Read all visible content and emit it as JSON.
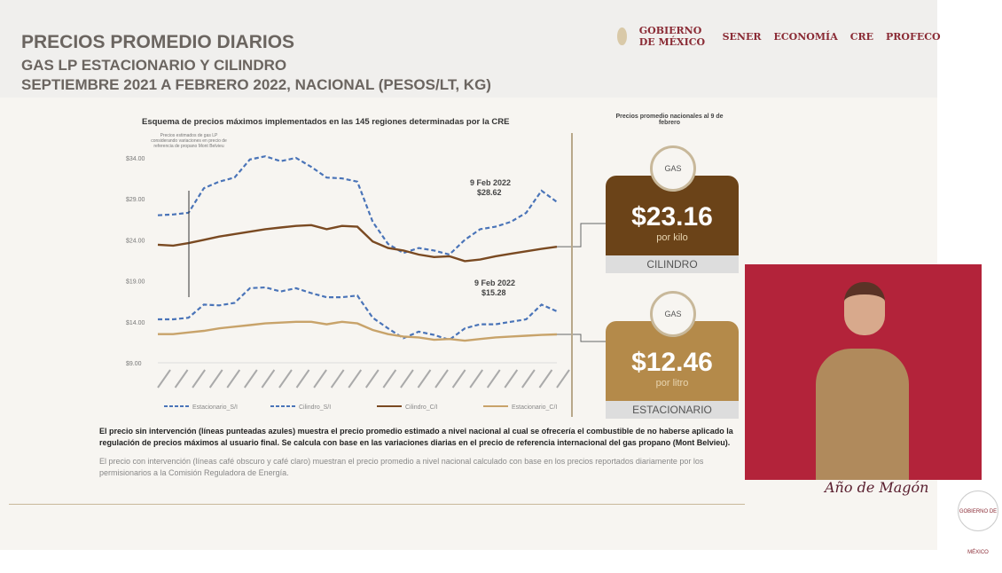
{
  "header": {
    "title": "PRECIOS PROMEDIO DIARIOS",
    "subtitle": "GAS LP ESTACIONARIO Y CILINDRO",
    "period": "SEPTIEMBRE 2021 A FEBRERO 2022, NACIONAL (PESOS/LT, KG)"
  },
  "logos": [
    "GOBIERNO DE MÉXICO",
    "SENER",
    "ECONOMÍA",
    "CRE",
    "PROFECO"
  ],
  "chart_data": {
    "type": "line",
    "title": "Esquema de precios máximos implementados en las 145 regiones determinadas por la CRE",
    "ylim": [
      9,
      34
    ],
    "yticks": [
      "$9.00",
      "$14.00",
      "$19.00",
      "$24.00",
      "$29.00",
      "$34.00"
    ],
    "grid": false,
    "legend": "bottom",
    "annotations": [
      {
        "text": "Precios estimados de gas LP considerando variaciones en precio de referencia de propano Mont Belvieu"
      },
      {
        "text": "9 Feb 2022",
        "value": "$28.62"
      },
      {
        "text": "9 Feb 2022",
        "value": "$15.28"
      }
    ],
    "series": [
      {
        "name": "Estacionario_S/I",
        "color": "#4a74b8",
        "dashed": true,
        "values": [
          14.3,
          14.3,
          14.5,
          16.1,
          16.0,
          16.3,
          18.1,
          18.2,
          17.7,
          18.1,
          17.5,
          17.0,
          17.0,
          17.2,
          14.5,
          13.2,
          12.0,
          12.8,
          12.4,
          11.8,
          13.2,
          13.7,
          13.7,
          14.0,
          14.3,
          16.1,
          15.28
        ]
      },
      {
        "name": "Cilindro_S/I",
        "color": "#4a74b8",
        "dashed": true,
        "values": [
          27.0,
          27.1,
          27.3,
          30.3,
          31.1,
          31.6,
          33.8,
          34.2,
          33.6,
          34.0,
          32.9,
          31.6,
          31.5,
          31.1,
          26.2,
          23.5,
          22.4,
          23.0,
          22.7,
          22.2,
          24.0,
          25.3,
          25.6,
          26.2,
          27.3,
          30.0,
          28.62
        ]
      },
      {
        "name": "Cilindro_C/I",
        "color": "#7a4a22",
        "dashed": false,
        "values": [
          23.4,
          23.3,
          23.6,
          24.0,
          24.4,
          24.7,
          25.0,
          25.3,
          25.5,
          25.7,
          25.8,
          25.3,
          25.7,
          25.6,
          23.8,
          23.0,
          22.7,
          22.2,
          21.9,
          22.0,
          21.4,
          21.6,
          22.0,
          22.3,
          22.6,
          22.9,
          23.16
        ]
      },
      {
        "name": "Estacionario_C/I",
        "color": "#c8a36a",
        "dashed": false,
        "values": [
          12.5,
          12.5,
          12.7,
          12.9,
          13.2,
          13.4,
          13.6,
          13.8,
          13.9,
          14.0,
          14.0,
          13.7,
          14.0,
          13.8,
          13.0,
          12.5,
          12.2,
          12.1,
          11.8,
          11.9,
          11.7,
          11.9,
          12.1,
          12.2,
          12.3,
          12.4,
          12.46
        ]
      }
    ]
  },
  "panel": {
    "title": "Precios promedio nacionales al 9 de febrero",
    "cilindro": {
      "icon_text": "GAS",
      "price": "$23.16",
      "unit": "por kilo",
      "label": "CILINDRO",
      "color": "#6b4318"
    },
    "estacionario": {
      "icon_text": "GAS",
      "price": "$12.46",
      "unit": "por litro",
      "label": "ESTACIONARIO",
      "color": "#b48a4a"
    }
  },
  "notes": {
    "n1": "El precio sin intervención (líneas punteadas azules) muestra el precio promedio estimado a nivel nacional al cual se ofrecería el combustible de no haberse aplicado la regulación de precios máximos al usuario final. Se calcula con base en las variaciones diarias en el precio de referencia internacional del gas propano (Mont Belvieu).",
    "n2": "El precio con intervención (líneas café obscuro y café claro) muestran el precio promedio a nivel nacional calculado con base en los precios reportados diariamente por los permisionarios a la Comisión Reguladora de Energía."
  },
  "footer": {
    "anio": "Año de Magón",
    "seal": "GOBIERNO DE MÉXICO"
  }
}
